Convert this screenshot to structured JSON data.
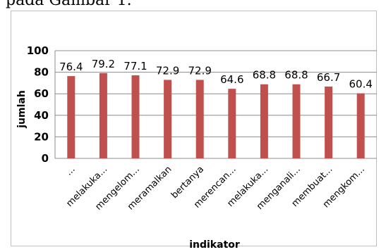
{
  "caption": "pada Gambar 1.",
  "chart_data": {
    "type": "bar",
    "categories": [
      "...",
      "melakuka...",
      "mengelom...",
      "meramalkan",
      "bertanya",
      "merencan...",
      "melakuka...",
      "menganali...",
      "membuat...",
      "mengkom..."
    ],
    "values": [
      76.4,
      79.2,
      77.1,
      72.9,
      72.9,
      64.6,
      68.8,
      68.8,
      66.7,
      60.4
    ],
    "value_labels": [
      "76.4",
      "79.2",
      "77.1",
      "72.9",
      "72.9",
      "64.6",
      "68.8",
      "68.8",
      "66.7",
      "60.4"
    ],
    "yticks": [
      "0",
      "20",
      "40",
      "60",
      "80",
      "100"
    ],
    "title": "",
    "xlabel": "indikator",
    "ylabel": "jumlah",
    "ylim": [
      0,
      100
    ],
    "grid": "horizontal",
    "legend": "none",
    "bar_color": "#c0504d"
  }
}
